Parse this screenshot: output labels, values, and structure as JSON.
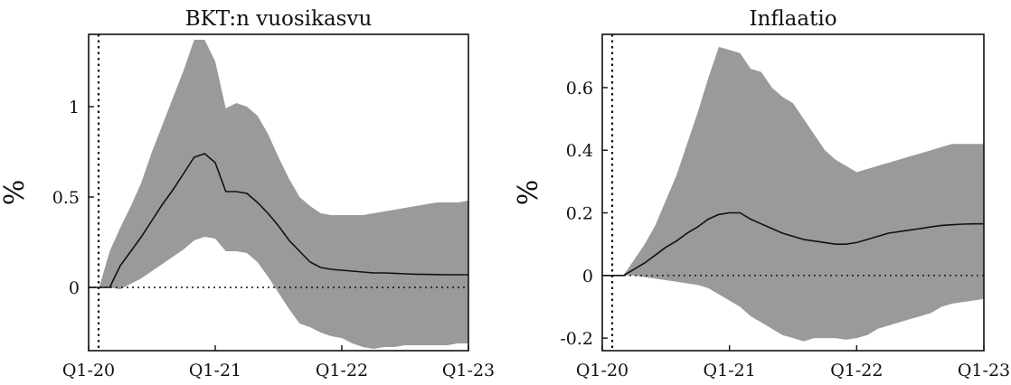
{
  "chart_data": [
    {
      "type": "area",
      "title": "BKT:n vuosikasvu",
      "ylabel": "%",
      "xlabel": "",
      "x_tick_labels": [
        "Q1-20",
        "Q1-21",
        "Q1-22",
        "Q1-23"
      ],
      "x_ticks": [
        0,
        12,
        24,
        36
      ],
      "xlim": [
        0,
        36
      ],
      "ylim": [
        -0.35,
        1.4
      ],
      "y_ticks": [
        0,
        0.5,
        1
      ],
      "y_tick_labels": [
        "0",
        "0.5",
        "1"
      ],
      "x": [
        0,
        1,
        2,
        3,
        4,
        5,
        6,
        7,
        8,
        9,
        10,
        11,
        12,
        13,
        14,
        15,
        16,
        17,
        18,
        19,
        20,
        21,
        22,
        23,
        24,
        25,
        26,
        27,
        28,
        29,
        30,
        31,
        32,
        33,
        34,
        35,
        36
      ],
      "series": [
        {
          "role": "median",
          "values": [
            0,
            0,
            0,
            0.12,
            0.2,
            0.28,
            0.37,
            0.46,
            0.54,
            0.63,
            0.72,
            0.74,
            0.69,
            0.53,
            0.53,
            0.52,
            0.47,
            0.41,
            0.34,
            0.26,
            0.2,
            0.14,
            0.11,
            0.1,
            0.095,
            0.09,
            0.085,
            0.08,
            0.08,
            0.078,
            0.075,
            0.073,
            0.072,
            0.071,
            0.07,
            0.07,
            0.07
          ]
        },
        {
          "role": "upper",
          "values": [
            0,
            0,
            0.2,
            0.33,
            0.45,
            0.58,
            0.75,
            0.9,
            1.05,
            1.2,
            1.37,
            1.37,
            1.25,
            0.99,
            1.02,
            1.0,
            0.95,
            0.85,
            0.72,
            0.6,
            0.5,
            0.45,
            0.41,
            0.4,
            0.4,
            0.4,
            0.4,
            0.41,
            0.42,
            0.43,
            0.44,
            0.45,
            0.46,
            0.47,
            0.47,
            0.47,
            0.48
          ]
        },
        {
          "role": "lower",
          "values": [
            0,
            0,
            0,
            -0.01,
            0.02,
            0.05,
            0.09,
            0.13,
            0.17,
            0.21,
            0.26,
            0.28,
            0.27,
            0.2,
            0.2,
            0.19,
            0.14,
            0.06,
            -0.03,
            -0.12,
            -0.2,
            -0.22,
            -0.25,
            -0.27,
            -0.28,
            -0.31,
            -0.33,
            -0.34,
            -0.33,
            -0.33,
            -0.32,
            -0.32,
            -0.32,
            -0.32,
            -0.32,
            -0.31,
            -0.31
          ]
        }
      ],
      "grid": false,
      "reference_lines": {
        "horizontal_zero": "dotted",
        "vertical_at_start": "dotted"
      }
    },
    {
      "type": "area",
      "title": "Inflaatio",
      "ylabel": "%",
      "xlabel": "",
      "x_tick_labels": [
        "Q1-20",
        "Q1-21",
        "Q1-22",
        "Q1-23"
      ],
      "x_ticks": [
        0,
        12,
        24,
        36
      ],
      "xlim": [
        0,
        36
      ],
      "ylim": [
        -0.24,
        0.77
      ],
      "y_ticks": [
        -0.2,
        0,
        0.2,
        0.4,
        0.6
      ],
      "y_tick_labels": [
        "-0.2",
        "0",
        "0.2",
        "0.4",
        "0.6"
      ],
      "x": [
        0,
        1,
        2,
        3,
        4,
        5,
        6,
        7,
        8,
        9,
        10,
        11,
        12,
        13,
        14,
        15,
        16,
        17,
        18,
        19,
        20,
        21,
        22,
        23,
        24,
        25,
        26,
        27,
        28,
        29,
        30,
        31,
        32,
        33,
        34,
        35,
        36
      ],
      "series": [
        {
          "role": "median",
          "values": [
            0,
            0,
            0,
            0.02,
            0.04,
            0.065,
            0.09,
            0.11,
            0.135,
            0.155,
            0.18,
            0.195,
            0.2,
            0.2,
            0.18,
            0.165,
            0.15,
            0.135,
            0.125,
            0.115,
            0.11,
            0.105,
            0.1,
            0.1,
            0.105,
            0.115,
            0.125,
            0.135,
            0.14,
            0.145,
            0.15,
            0.155,
            0.16,
            0.162,
            0.164,
            0.165,
            0.165
          ]
        },
        {
          "role": "upper",
          "values": [
            0,
            0,
            0,
            0.05,
            0.1,
            0.16,
            0.24,
            0.32,
            0.42,
            0.52,
            0.63,
            0.73,
            0.72,
            0.71,
            0.66,
            0.65,
            0.6,
            0.57,
            0.55,
            0.5,
            0.45,
            0.4,
            0.37,
            0.35,
            0.33,
            0.34,
            0.35,
            0.36,
            0.37,
            0.38,
            0.39,
            0.4,
            0.41,
            0.42,
            0.42,
            0.42,
            0.42
          ]
        },
        {
          "role": "lower",
          "values": [
            0,
            0,
            0,
            0,
            -0.005,
            -0.01,
            -0.015,
            -0.02,
            -0.025,
            -0.03,
            -0.04,
            -0.06,
            -0.08,
            -0.1,
            -0.13,
            -0.15,
            -0.17,
            -0.19,
            -0.2,
            -0.21,
            -0.2,
            -0.2,
            -0.2,
            -0.205,
            -0.2,
            -0.19,
            -0.17,
            -0.16,
            -0.15,
            -0.14,
            -0.13,
            -0.12,
            -0.1,
            -0.09,
            -0.085,
            -0.08,
            -0.075
          ]
        }
      ],
      "grid": false,
      "reference_lines": {
        "horizontal_zero": "dotted",
        "vertical_at_start": "dotted"
      }
    }
  ]
}
